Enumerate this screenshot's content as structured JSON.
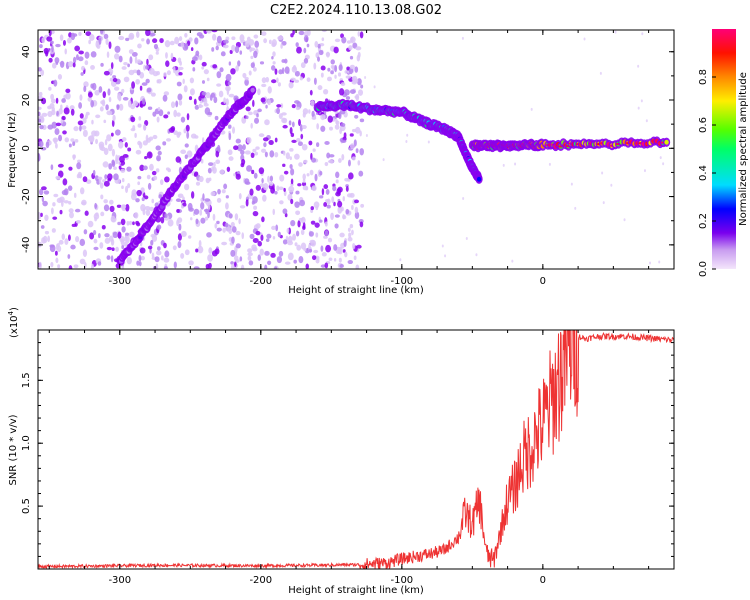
{
  "title": "C2E2.2024.110.13.08.G02",
  "colorbar": {
    "label": "Normalized spectral amplitude",
    "ticks": [
      "0.0",
      "0.2",
      "0.4",
      "0.6",
      "0.8"
    ],
    "tick_values": [
      0.0,
      0.2,
      0.4,
      0.6,
      0.8
    ],
    "range": [
      0,
      1
    ]
  },
  "chart_data": [
    {
      "type": "heatmap",
      "xlabel": "Height of straight line (km)",
      "ylabel": "Frequency (Hz)",
      "xlim": [
        -358,
        93
      ],
      "ylim": [
        -50,
        49
      ],
      "x_ticks": [
        "-300",
        "-200",
        "-100",
        "0"
      ],
      "x_tick_values": [
        -300,
        -200,
        -100,
        0
      ],
      "y_ticks": [
        "-40",
        "-20",
        "0",
        "20",
        "40"
      ],
      "y_tick_values": [
        -40,
        -20,
        0,
        20,
        40
      ],
      "noise_region_x": [
        -358,
        -128
      ],
      "noise_color": "#8800ee",
      "ridges": [
        {
          "x": [
            -300,
            -280,
            -260,
            -240,
            -222,
            -205
          ],
          "y": [
            -47,
            -32,
            -15,
            0,
            14,
            24
          ],
          "amplitude": 0.15
        },
        {
          "x": [
            -160,
            -140,
            -120,
            -100,
            -85,
            -70,
            -60
          ],
          "y": [
            17,
            18,
            16,
            15,
            11,
            8,
            5
          ],
          "amplitude": 0.45
        },
        {
          "x": [
            -60,
            -55,
            -50,
            -45
          ],
          "y": [
            5,
            -2,
            -8,
            -13
          ],
          "amplitude": 0.35
        },
        {
          "x": [
            -50,
            -35,
            -20,
            0,
            40,
            90
          ],
          "y": [
            1,
            1,
            1,
            1.5,
            1.5,
            2.5
          ],
          "amplitude": 0.9
        }
      ]
    },
    {
      "type": "line",
      "xlabel": "Height of straight line (km)",
      "ylabel": "SNR (10 * v/v)",
      "y_multiplier": "(x10",
      "y_multiplier_exp": "4",
      "y_multiplier_close": ")",
      "xlim": [
        -358,
        93
      ],
      "ylim": [
        0,
        19000
      ],
      "x_ticks": [
        "-300",
        "-200",
        "-100",
        "0"
      ],
      "x_tick_values": [
        -300,
        -200,
        -100,
        0
      ],
      "y_ticks": [
        "0.5",
        "1.0",
        "1.5"
      ],
      "y_tick_values": [
        5000,
        10000,
        15000
      ],
      "color": "#ee3333",
      "series": [
        {
          "x": [
            -358,
            -330,
            -300,
            -270,
            -240,
            -200,
            -160,
            -130,
            -110,
            -100,
            -90,
            -80,
            -70,
            -60,
            -55,
            -50,
            -45,
            -40,
            -35,
            -30,
            -25,
            -20,
            -15,
            -10,
            -5,
            0,
            5,
            10,
            15,
            20,
            25,
            30,
            40,
            50,
            60,
            70,
            80,
            93
          ],
          "y": [
            200,
            220,
            260,
            300,
            280,
            260,
            300,
            350,
            500,
            800,
            1000,
            1200,
            1500,
            2500,
            4500,
            3500,
            5500,
            1200,
            600,
            3000,
            5500,
            6500,
            8500,
            9500,
            10500,
            11500,
            13000,
            14500,
            16500,
            18200,
            18500,
            18300,
            18500,
            18500,
            18500,
            18400,
            18300,
            18200
          ]
        }
      ]
    }
  ]
}
